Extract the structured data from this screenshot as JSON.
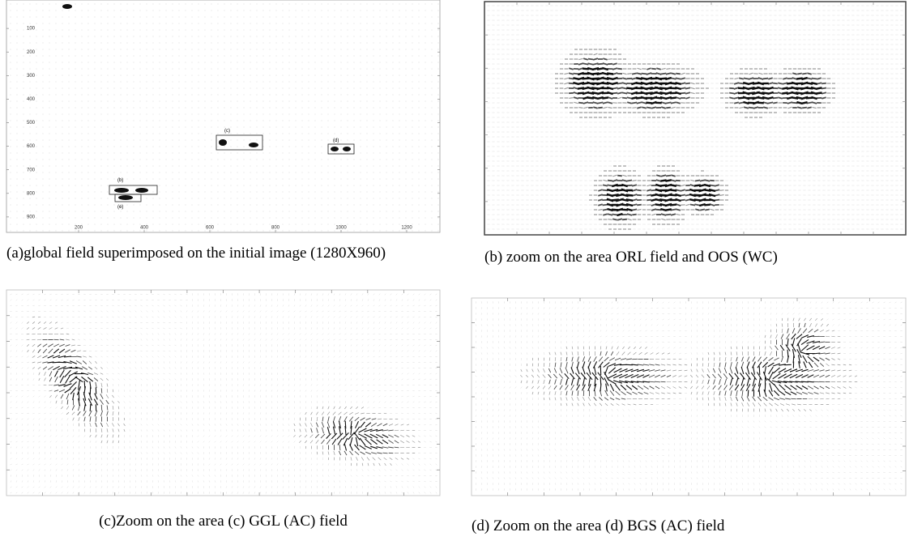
{
  "panels": [
    {
      "caption": "(a)global field superimposed on the initial image (1280X960)",
      "xticks": [
        200,
        400,
        600,
        800,
        1000,
        1200
      ],
      "yticks": [
        100,
        200,
        300,
        400,
        500,
        600,
        700,
        800,
        900
      ],
      "region_labels": [
        "(b)",
        "(c)",
        "(d)",
        "(e)"
      ]
    },
    {
      "caption": "(b) zoom on the area ORL field and OOS (WC)"
    },
    {
      "caption": "(c)Zoom on the area (c) GGL (AC) field"
    },
    {
      "caption": "(d) Zoom on the area (d) BGS (AC) field"
    }
  ]
}
